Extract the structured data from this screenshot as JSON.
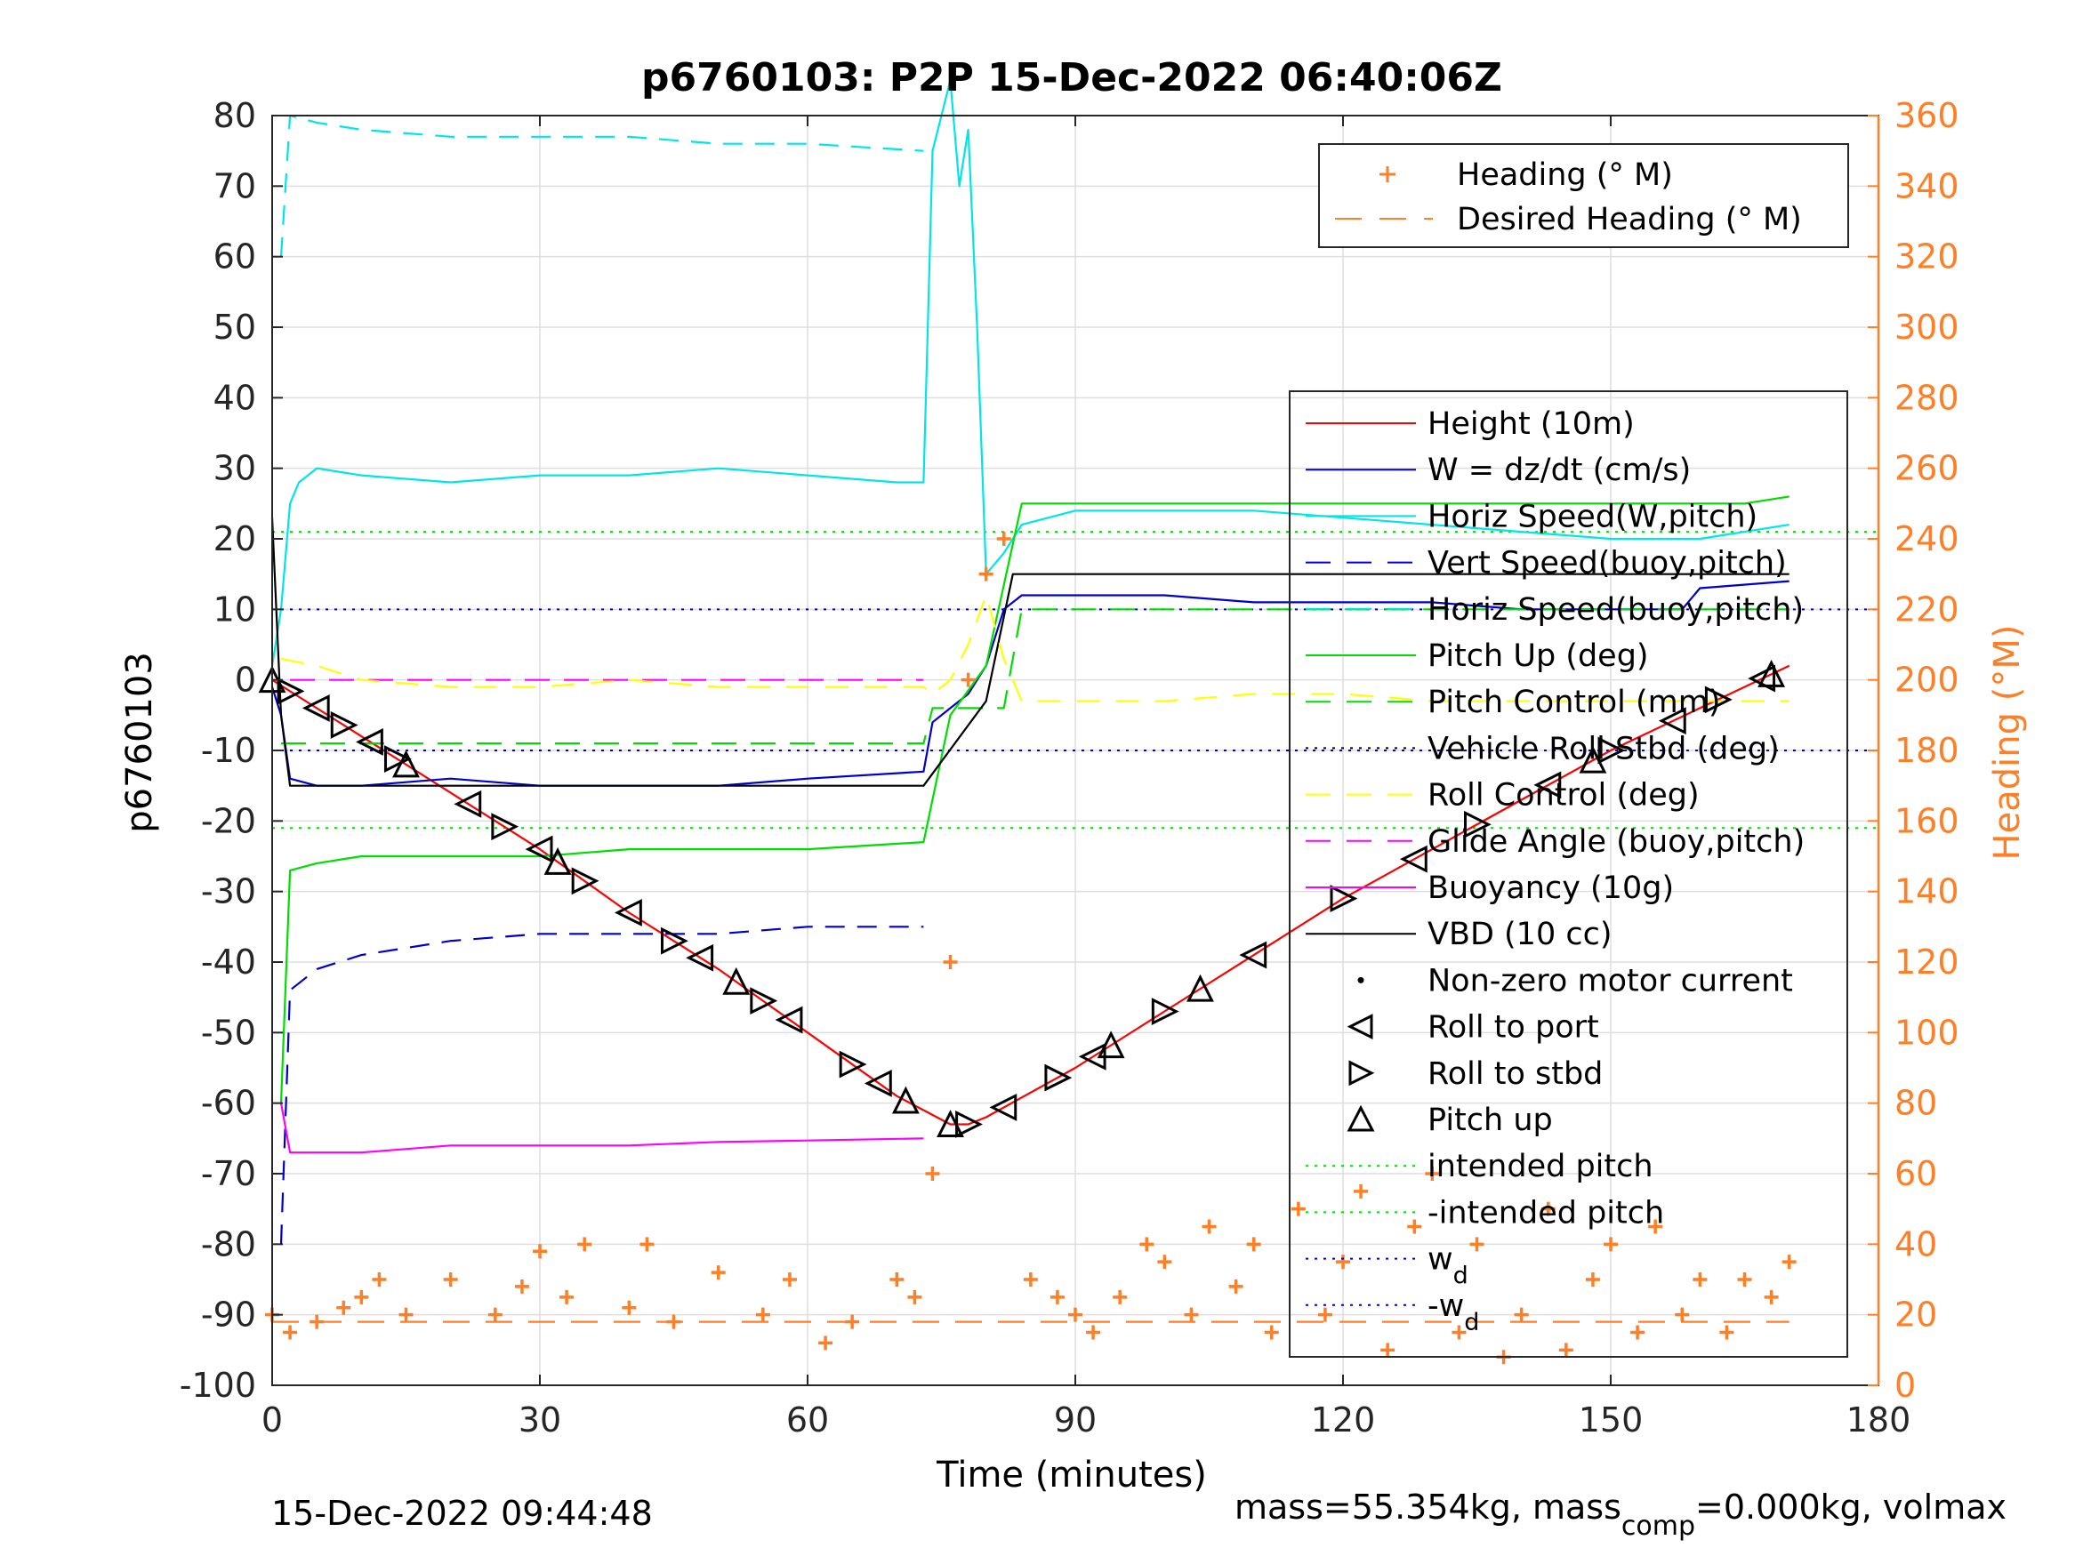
{
  "chart_data": {
    "type": "line",
    "title": "p6760103: P2P 15-Dec-2022 06:40:06Z",
    "xlabel": "Time (minutes)",
    "ylabel_left": "p6760103",
    "ylabel_right": "Heading (°M)",
    "xlim": [
      0,
      180
    ],
    "ylim_left": [
      -100,
      80
    ],
    "ylim_right": [
      0,
      360
    ],
    "xticks": [
      "0",
      "30",
      "60",
      "90",
      "120",
      "150",
      "180"
    ],
    "yticks_left": [
      "80",
      "70",
      "60",
      "50",
      "40",
      "30",
      "20",
      "10",
      "0",
      "-10",
      "-20",
      "-30",
      "-40",
      "-50",
      "-60",
      "-70",
      "-80",
      "-90",
      "-100"
    ],
    "yticks_right": [
      "360",
      "340",
      "320",
      "300",
      "280",
      "260",
      "240",
      "220",
      "200",
      "180",
      "160",
      "140",
      "120",
      "100",
      "80",
      "60",
      "40",
      "20",
      "0"
    ],
    "grid": true,
    "legend_heading": {
      "placement": "top-right",
      "entries": [
        {
          "label": "Heading (° M)",
          "color": "#ff7f27"
        },
        {
          "label": "Desired Heading (° M)",
          "color": "#ff7f27"
        }
      ]
    },
    "legend_main": {
      "placement": "right",
      "entries": [
        {
          "label": "Height (10m)",
          "color": "#ff0000"
        },
        {
          "label": "W = dz/dt (cm/s)",
          "color": "#0000cc"
        },
        {
          "label": "Horiz Speed(W,pitch)",
          "color": "#00e5e5"
        },
        {
          "label": "Vert Speed(buoy,pitch)",
          "color": "#0000cc"
        },
        {
          "label": "Horiz Speed(buoy,pitch)",
          "color": "#00e5e5"
        },
        {
          "label": "Pitch Up (deg)",
          "color": "#00dd00"
        },
        {
          "label": "Pitch Control (mm)",
          "color": "#00dd00"
        },
        {
          "label": "Vehicle Roll Stbd (deg)",
          "color": "#000000"
        },
        {
          "label": "Roll Control (deg)",
          "color": "#ffff00"
        },
        {
          "label": "Glide Angle (buoy,pitch)",
          "color": "#ff00ff"
        },
        {
          "label": "Buoyancy (10g)",
          "color": "#ff00ff"
        },
        {
          "label": "VBD (10 cc)",
          "color": "#000000"
        },
        {
          "label": "Non-zero motor current",
          "color": "#000000"
        },
        {
          "label": "Roll to port",
          "color": "#000000"
        },
        {
          "label": "Roll to stbd",
          "color": "#000000"
        },
        {
          "label": "Pitch up",
          "color": "#000000"
        },
        {
          "label": "intended pitch",
          "color": "#00dd00"
        },
        {
          "label": "-intended pitch",
          "color": "#00dd00"
        },
        {
          "label": "w",
          "sub": "d",
          "color": "#0000cc"
        },
        {
          "label": "-w",
          "sub": "d",
          "color": "#0000cc"
        }
      ]
    },
    "series": [
      {
        "name": "Height (10m)",
        "color": "#ff0000",
        "x": [
          0,
          10,
          20,
          30,
          40,
          50,
          60,
          70,
          76,
          78,
          80,
          90,
          100,
          110,
          120,
          130,
          140,
          150,
          160,
          170
        ],
        "y": [
          0,
          -8,
          -16,
          -24,
          -33,
          -41,
          -50,
          -59,
          -63,
          -63,
          -62,
          -55,
          -47,
          -39,
          -31,
          -24,
          -17,
          -10,
          -4,
          2
        ]
      },
      {
        "name": "W = dz/dt (cm/s)",
        "color": "#0000cc",
        "x": [
          0,
          1,
          2,
          5,
          10,
          20,
          30,
          40,
          50,
          60,
          73,
          74,
          76,
          78,
          80,
          82,
          84,
          90,
          100,
          110,
          120,
          130,
          140,
          150,
          158,
          160,
          170
        ],
        "y": [
          -1,
          -5,
          -14,
          -15,
          -15,
          -14,
          -15,
          -15,
          -15,
          -14,
          -13,
          -6,
          -4,
          -2,
          2,
          10,
          12,
          12,
          12,
          11,
          11,
          11,
          10,
          10,
          10,
          13,
          14
        ]
      },
      {
        "name": "Horiz Speed(W,pitch)",
        "color": "#00e5e5",
        "x": [
          0,
          1,
          2,
          3,
          5,
          10,
          20,
          30,
          40,
          50,
          60,
          70,
          73,
          74,
          75,
          76,
          77,
          78,
          79,
          80,
          82,
          84,
          90,
          100,
          110,
          120,
          130,
          140,
          150,
          160,
          165,
          170
        ],
        "y": [
          2,
          10,
          25,
          28,
          30,
          29,
          28,
          29,
          29,
          30,
          29,
          28,
          28,
          75,
          80,
          85,
          70,
          78,
          50,
          15,
          18,
          22,
          24,
          24,
          24,
          23,
          22,
          21,
          20,
          20,
          21,
          22
        ]
      },
      {
        "name": "Vert Speed(buoy,pitch)",
        "color": "#0000cc",
        "x": [
          1,
          2,
          5,
          10,
          20,
          30,
          40,
          50,
          60,
          73
        ],
        "y": [
          -80,
          -44,
          -41,
          -39,
          -37,
          -36,
          -36,
          -36,
          -35,
          -35
        ]
      },
      {
        "name": "Horiz Speed(buoy,pitch)",
        "color": "#00e5e5",
        "x": [
          1,
          2,
          5,
          10,
          20,
          30,
          40,
          50,
          60,
          73
        ],
        "y": [
          60,
          80,
          79,
          78,
          77,
          77,
          77,
          76,
          76,
          75
        ]
      },
      {
        "name": "Pitch Up (deg)",
        "color": "#00dd00",
        "x": [
          1,
          2,
          5,
          10,
          20,
          30,
          40,
          50,
          60,
          73,
          76,
          80,
          84,
          90,
          100,
          110,
          120,
          130,
          140,
          150,
          160,
          165,
          170
        ],
        "y": [
          -60,
          -27,
          -26,
          -25,
          -25,
          -25,
          -24,
          -24,
          -24,
          -23,
          -5,
          2,
          25,
          25,
          25,
          25,
          25,
          25,
          25,
          25,
          25,
          25,
          26
        ]
      },
      {
        "name": "Pitch Control (mm)",
        "color": "#00dd00",
        "x": [
          1,
          2,
          73,
          74,
          82,
          84,
          170
        ],
        "y": [
          -9,
          -9,
          -9,
          -4,
          -4,
          10,
          10
        ]
      },
      {
        "name": "Glide Angle (buoy,pitch)",
        "color": "#ff00ff",
        "x": [
          2,
          73
        ],
        "y": [
          0,
          0
        ]
      },
      {
        "name": "Buoyancy (10g)",
        "color": "#ff00ff",
        "x": [
          1,
          2,
          10,
          20,
          30,
          40,
          50,
          60,
          73
        ],
        "y": [
          -60,
          -67,
          -67,
          -66,
          -66,
          -66,
          -65.5,
          -65.3,
          -65
        ]
      },
      {
        "name": "VBD (10 cc)",
        "color": "#000000",
        "x": [
          0,
          1,
          2,
          73,
          80,
          83,
          170
        ],
        "y": [
          23,
          -5,
          -15,
          -15,
          -3,
          15,
          15
        ]
      },
      {
        "name": "Heading (° M)",
        "color": "#ff7f27",
        "axis": "right",
        "x": [
          0,
          2,
          5,
          8,
          10,
          12,
          15,
          20,
          25,
          28,
          30,
          33,
          35,
          40,
          42,
          45,
          50,
          55,
          58,
          62,
          65,
          70,
          72,
          74,
          76,
          78,
          80,
          82,
          85,
          88,
          90,
          92,
          95,
          98,
          100,
          103,
          105,
          108,
          110,
          112,
          115,
          118,
          120,
          122,
          125,
          128,
          130,
          133,
          135,
          138,
          140,
          143,
          145,
          148,
          150,
          153,
          155,
          158,
          160,
          163,
          165,
          168,
          170
        ],
        "y": [
          20,
          15,
          18,
          22,
          25,
          30,
          20,
          30,
          20,
          28,
          38,
          25,
          40,
          22,
          40,
          18,
          32,
          20,
          30,
          12,
          18,
          30,
          25,
          60,
          120,
          200,
          230,
          240,
          30,
          25,
          20,
          15,
          25,
          40,
          35,
          20,
          45,
          28,
          40,
          15,
          50,
          20,
          35,
          55,
          10,
          45,
          60,
          15,
          40,
          8,
          20,
          50,
          10,
          30,
          40,
          15,
          45,
          20,
          30,
          15,
          30,
          25,
          35
        ]
      },
      {
        "name": "Desired Heading (° M)",
        "color": "#ff7f27",
        "axis": "right",
        "x": [
          0,
          170
        ],
        "y": [
          18,
          18
        ]
      },
      {
        "name": "Roll Control (deg)",
        "color": "#ffff00",
        "x": [
          1,
          5,
          10,
          20,
          30,
          40,
          50,
          60,
          70,
          73,
          74,
          76,
          78,
          80,
          82,
          84,
          90,
          100,
          110,
          120,
          130,
          140,
          150,
          160,
          170
        ],
        "y": [
          3,
          2,
          0,
          -1,
          -1,
          0,
          -1,
          -1,
          -1,
          -1,
          -2,
          0,
          5,
          12,
          3,
          -3,
          -3,
          -3,
          -2,
          -2,
          -3,
          -3,
          -3,
          -3,
          -3
        ]
      }
    ],
    "reference_lines": [
      {
        "label": "intended pitch",
        "y": 21,
        "color": "#00dd00"
      },
      {
        "label": "-intended pitch",
        "y": -21,
        "color": "#00dd00"
      },
      {
        "label": "w_d",
        "y": 10,
        "color": "#0000cc"
      },
      {
        "label": "-w_d",
        "y": -10,
        "color": "#0000cc"
      }
    ],
    "roll_to_port_x": [
      5,
      11,
      22,
      30,
      40,
      48,
      58,
      68,
      82,
      92,
      110,
      128,
      143,
      157,
      167
    ],
    "roll_to_stbd_x": [
      2,
      8,
      14,
      26,
      35,
      45,
      55,
      65,
      78,
      88,
      100,
      120,
      135,
      150,
      162
    ],
    "pitch_up_x": [
      0,
      15,
      32,
      52,
      71,
      76,
      94,
      104,
      148,
      168
    ]
  },
  "footer": {
    "timestamp": "15-Dec-2022 09:44:48",
    "mass_prefix": "mass=55.354kg, mass",
    "mass_sub": "comp",
    "mass_suffix": "=0.000kg, volmax"
  }
}
